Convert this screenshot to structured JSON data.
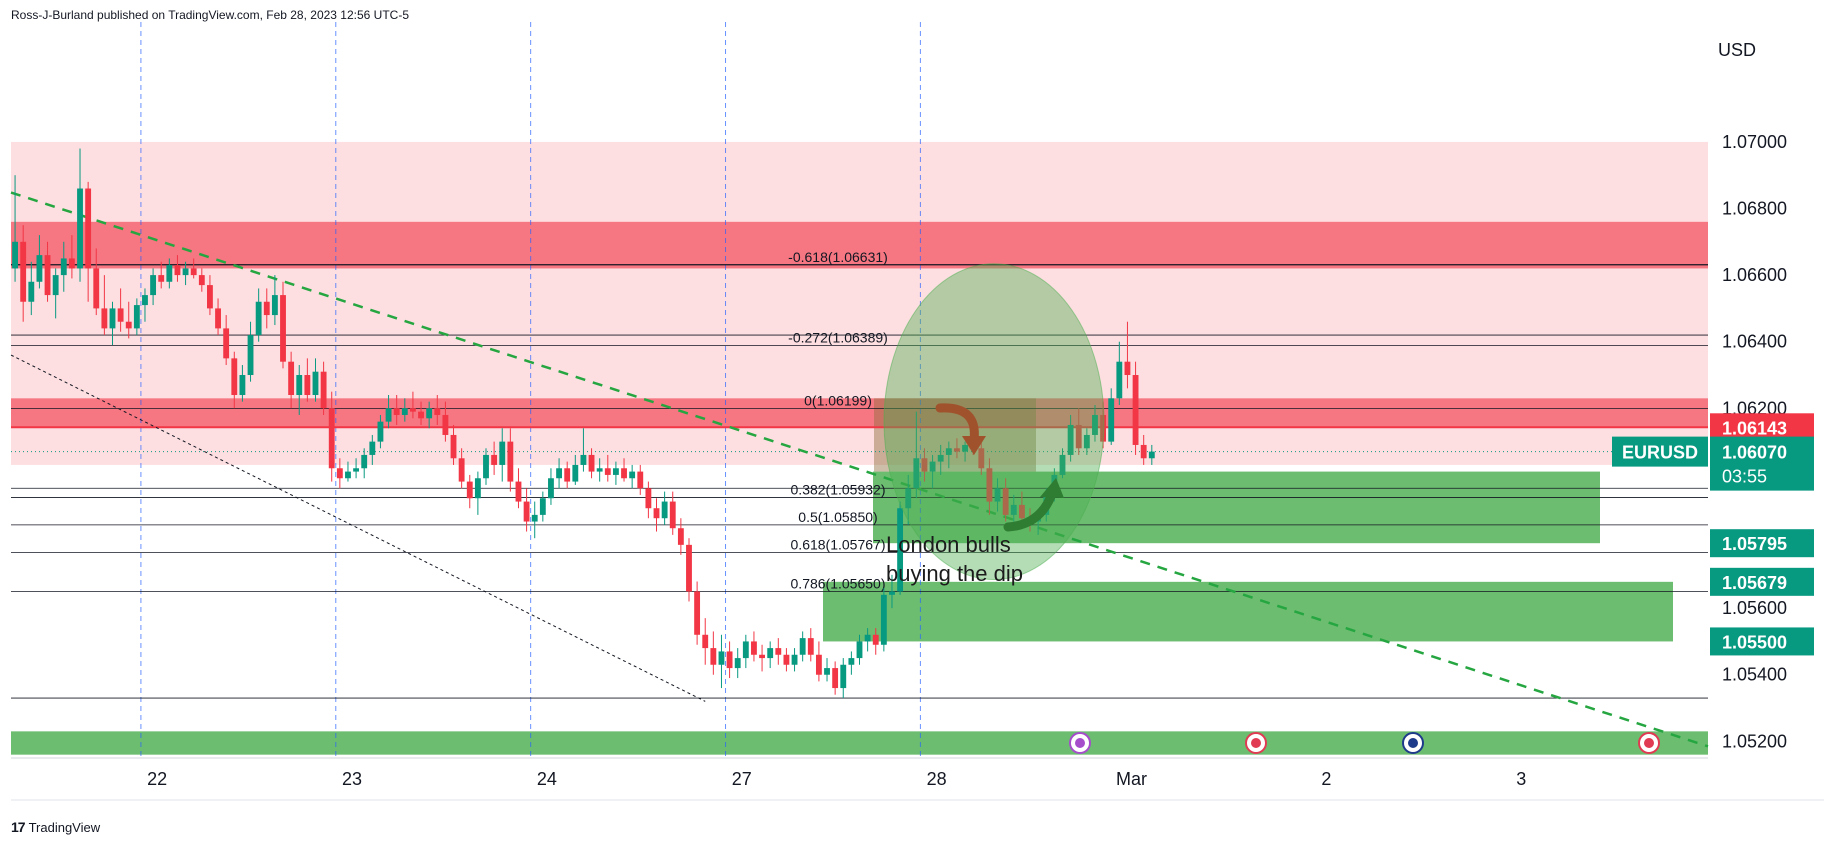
{
  "header": {
    "published": "Ross-J-Burland published on TradingView.com, Feb 28, 2023 12:56 UTC-5"
  },
  "footer": {
    "brand": "TradingView",
    "logo": "17"
  },
  "chart_data": {
    "type": "candlestick",
    "symbol": "EURUSD",
    "currency": "USD",
    "ylim": [
      1.0515,
      1.0736
    ],
    "y_ticks": [
      "1.07000",
      "1.06800",
      "1.06600",
      "1.06400",
      "1.06200",
      "1.05600",
      "1.05400",
      "1.05200"
    ],
    "x_ticks": [
      "22",
      "23",
      "24",
      "27",
      "28",
      "Mar",
      "2",
      "3"
    ],
    "x_tick_slots": [
      17.5,
      41.5,
      65.5,
      89.5,
      113.5,
      137.5,
      161.5,
      185.5
    ],
    "day_separators": [
      16,
      40,
      64,
      88,
      112
    ],
    "total_slots": 209,
    "colors": {
      "up": "#089981",
      "down": "#f23645",
      "trend": "#26a641",
      "fill_green": "#4caf50",
      "fill_red": "#f23645"
    },
    "candles": [
      [
        1.0662,
        1.069,
        1.0658,
        1.067
      ],
      [
        1.067,
        1.0675,
        1.0646,
        1.0652
      ],
      [
        1.0652,
        1.0664,
        1.0648,
        1.0658
      ],
      [
        1.0658,
        1.0672,
        1.0656,
        1.0666
      ],
      [
        1.0666,
        1.067,
        1.0652,
        1.0654
      ],
      [
        1.0654,
        1.0662,
        1.0647,
        1.066
      ],
      [
        1.066,
        1.067,
        1.0655,
        1.0665
      ],
      [
        1.0665,
        1.0672,
        1.0659,
        1.0662
      ],
      [
        1.0662,
        1.0698,
        1.0658,
        1.0686
      ],
      [
        1.0686,
        1.0688,
        1.0652,
        1.0662
      ],
      [
        1.0662,
        1.0668,
        1.0648,
        1.065
      ],
      [
        1.065,
        1.066,
        1.0642,
        1.0644
      ],
      [
        1.0644,
        1.0652,
        1.0639,
        1.065
      ],
      [
        1.065,
        1.0656,
        1.0643,
        1.0646
      ],
      [
        1.0646,
        1.0652,
        1.0641,
        1.0644
      ],
      [
        1.0644,
        1.0653,
        1.0642,
        1.0651
      ],
      [
        1.0651,
        1.0656,
        1.0646,
        1.0654
      ],
      [
        1.0654,
        1.0662,
        1.0651,
        1.066
      ],
      [
        1.066,
        1.0664,
        1.0656,
        1.0658
      ],
      [
        1.0658,
        1.0665,
        1.0656,
        1.0663
      ],
      [
        1.0663,
        1.0666,
        1.0658,
        1.066
      ],
      [
        1.066,
        1.0664,
        1.0657,
        1.0662
      ],
      [
        1.0662,
        1.0665,
        1.0659,
        1.066
      ],
      [
        1.066,
        1.0662,
        1.0655,
        1.0657
      ],
      [
        1.0657,
        1.066,
        1.0648,
        1.065
      ],
      [
        1.065,
        1.0653,
        1.0642,
        1.0644
      ],
      [
        1.0644,
        1.0648,
        1.0633,
        1.0635
      ],
      [
        1.0635,
        1.0637,
        1.062,
        1.0624
      ],
      [
        1.0624,
        1.0633,
        1.0622,
        1.063
      ],
      [
        1.063,
        1.0646,
        1.0628,
        1.0642
      ],
      [
        1.0642,
        1.0656,
        1.064,
        1.0652
      ],
      [
        1.0652,
        1.0656,
        1.0644,
        1.0648
      ],
      [
        1.0648,
        1.066,
        1.0645,
        1.0654
      ],
      [
        1.0654,
        1.0658,
        1.0632,
        1.0634
      ],
      [
        1.0634,
        1.0637,
        1.062,
        1.0624
      ],
      [
        1.0624,
        1.0633,
        1.0618,
        1.063
      ],
      [
        1.063,
        1.0635,
        1.0622,
        1.0624
      ],
      [
        1.0624,
        1.0635,
        1.0622,
        1.0631
      ],
      [
        1.0631,
        1.0634,
        1.0618,
        1.062
      ],
      [
        1.062,
        1.0625,
        1.0598,
        1.0602
      ],
      [
        1.0602,
        1.0605,
        1.0596,
        1.0599
      ],
      [
        1.0599,
        1.0604,
        1.0598,
        1.0601
      ],
      [
        1.0601,
        1.0605,
        1.0599,
        1.0602
      ],
      [
        1.0602,
        1.0608,
        1.0599,
        1.0606
      ],
      [
        1.0606,
        1.0612,
        1.0603,
        1.061
      ],
      [
        1.061,
        1.0618,
        1.0608,
        1.0616
      ],
      [
        1.0616,
        1.0624,
        1.0614,
        1.062
      ],
      [
        1.062,
        1.0624,
        1.0615,
        1.0618
      ],
      [
        1.0618,
        1.0623,
        1.0616,
        1.062
      ],
      [
        1.062,
        1.0625,
        1.0617,
        1.0619
      ],
      [
        1.0619,
        1.0622,
        1.0615,
        1.0617
      ],
      [
        1.0617,
        1.0622,
        1.0614,
        1.062
      ],
      [
        1.062,
        1.0624,
        1.0615,
        1.0618
      ],
      [
        1.0618,
        1.0622,
        1.061,
        1.0612
      ],
      [
        1.0612,
        1.0615,
        1.0603,
        1.0605
      ],
      [
        1.0605,
        1.0608,
        1.0596,
        1.0598
      ],
      [
        1.0598,
        1.06,
        1.059,
        1.0593
      ],
      [
        1.0593,
        1.0601,
        1.0588,
        1.0599
      ],
      [
        1.0599,
        1.0608,
        1.0597,
        1.0606
      ],
      [
        1.0606,
        1.061,
        1.06,
        1.0603
      ],
      [
        1.0603,
        1.0614,
        1.0598,
        1.061
      ],
      [
        1.061,
        1.0614,
        1.0595,
        1.0598
      ],
      [
        1.0598,
        1.0602,
        1.059,
        1.0592
      ],
      [
        1.0592,
        1.0596,
        1.0583,
        1.0586
      ],
      [
        1.0586,
        1.0592,
        1.0581,
        1.0588
      ],
      [
        1.0588,
        1.0595,
        1.0586,
        1.0593
      ],
      [
        1.0593,
        1.0602,
        1.0591,
        1.0599
      ],
      [
        1.0599,
        1.0605,
        1.0596,
        1.0602
      ],
      [
        1.0602,
        1.0604,
        1.0596,
        1.0598
      ],
      [
        1.0598,
        1.0606,
        1.0597,
        1.0603
      ],
      [
        1.0603,
        1.0614,
        1.0601,
        1.0606
      ],
      [
        1.0606,
        1.0608,
        1.0599,
        1.0601
      ],
      [
        1.0601,
        1.0605,
        1.0598,
        1.0602
      ],
      [
        1.0602,
        1.0606,
        1.0598,
        1.06
      ],
      [
        1.06,
        1.0604,
        1.0597,
        1.0602
      ],
      [
        1.0602,
        1.0605,
        1.0598,
        1.0599
      ],
      [
        1.0599,
        1.0603,
        1.0596,
        1.0601
      ],
      [
        1.0601,
        1.0603,
        1.0594,
        1.0596
      ],
      [
        1.0596,
        1.0598,
        1.0587,
        1.059
      ],
      [
        1.059,
        1.0593,
        1.0583,
        1.0587
      ],
      [
        1.0587,
        1.0595,
        1.0585,
        1.0592
      ],
      [
        1.0592,
        1.0595,
        1.0582,
        1.0584
      ],
      [
        1.0584,
        1.0587,
        1.0576,
        1.0579
      ],
      [
        1.0579,
        1.0581,
        1.0562,
        1.0565
      ],
      [
        1.0565,
        1.0568,
        1.0549,
        1.0552
      ],
      [
        1.0552,
        1.0557,
        1.0543,
        1.0548
      ],
      [
        1.0548,
        1.0553,
        1.054,
        1.0543
      ],
      [
        1.0543,
        1.0552,
        1.0536,
        1.0547
      ],
      [
        1.0547,
        1.055,
        1.0539,
        1.0542
      ],
      [
        1.0542,
        1.0548,
        1.0539,
        1.0545
      ],
      [
        1.0545,
        1.0552,
        1.0542,
        1.055
      ],
      [
        1.055,
        1.0553,
        1.0544,
        1.0546
      ],
      [
        1.0546,
        1.0549,
        1.0541,
        1.0545
      ],
      [
        1.0545,
        1.055,
        1.0542,
        1.0548
      ],
      [
        1.0548,
        1.0551,
        1.0543,
        1.0546
      ],
      [
        1.0546,
        1.0548,
        1.0541,
        1.0543
      ],
      [
        1.0543,
        1.0548,
        1.0541,
        1.0546
      ],
      [
        1.0546,
        1.0553,
        1.0544,
        1.0551
      ],
      [
        1.0551,
        1.0554,
        1.0544,
        1.0546
      ],
      [
        1.0546,
        1.055,
        1.0538,
        1.054
      ],
      [
        1.054,
        1.0545,
        1.0538,
        1.0542
      ],
      [
        1.0542,
        1.0544,
        1.0534,
        1.0536
      ],
      [
        1.0536,
        1.0545,
        1.0533,
        1.0543
      ],
      [
        1.0543,
        1.0547,
        1.054,
        1.0545
      ],
      [
        1.0545,
        1.0552,
        1.0543,
        1.055
      ],
      [
        1.055,
        1.0554,
        1.0547,
        1.0552
      ],
      [
        1.0552,
        1.0554,
        1.0546,
        1.0549
      ],
      [
        1.0549,
        1.0566,
        1.0547,
        1.0564
      ],
      [
        1.0564,
        1.057,
        1.056,
        1.0565
      ],
      [
        1.0565,
        1.0592,
        1.0564,
        1.059
      ],
      [
        1.059,
        1.06,
        1.0585,
        1.0596
      ],
      [
        1.0596,
        1.0619,
        1.0593,
        1.0605
      ],
      [
        1.0605,
        1.0608,
        1.0598,
        1.0601
      ],
      [
        1.0601,
        1.0606,
        1.0596,
        1.0604
      ],
      [
        1.0604,
        1.0609,
        1.06,
        1.0606
      ],
      [
        1.0606,
        1.061,
        1.0602,
        1.0608
      ],
      [
        1.0608,
        1.0611,
        1.0605,
        1.0607
      ],
      [
        1.0607,
        1.061,
        1.0604,
        1.0609
      ],
      [
        1.0609,
        1.0612,
        1.0606,
        1.0608
      ],
      [
        1.0608,
        1.0611,
        1.06,
        1.0602
      ],
      [
        1.0602,
        1.0605,
        1.0588,
        1.0592
      ],
      [
        1.0592,
        1.0599,
        1.0589,
        1.0596
      ],
      [
        1.0596,
        1.0599,
        1.0586,
        1.0588
      ],
      [
        1.0588,
        1.0594,
        1.0586,
        1.0591
      ],
      [
        1.0591,
        1.0595,
        1.0585,
        1.0587
      ],
      [
        1.0587,
        1.059,
        1.0583,
        1.0586
      ],
      [
        1.0586,
        1.0589,
        1.0582,
        1.0588
      ],
      [
        1.0588,
        1.0596,
        1.0586,
        1.0594
      ],
      [
        1.0594,
        1.0602,
        1.0592,
        1.06
      ],
      [
        1.06,
        1.0608,
        1.0599,
        1.0606
      ],
      [
        1.0606,
        1.0618,
        1.0604,
        1.0615
      ],
      [
        1.0615,
        1.062,
        1.0606,
        1.0608
      ],
      [
        1.0608,
        1.0614,
        1.0606,
        1.0612
      ],
      [
        1.0612,
        1.0621,
        1.061,
        1.0618
      ],
      [
        1.0618,
        1.0622,
        1.0608,
        1.061
      ],
      [
        1.061,
        1.0626,
        1.0609,
        1.0623
      ],
      [
        1.0623,
        1.064,
        1.0621,
        1.0634
      ],
      [
        1.0634,
        1.0646,
        1.0626,
        1.063
      ],
      [
        1.063,
        1.0634,
        1.0606,
        1.0609
      ],
      [
        1.0609,
        1.0612,
        1.0603,
        1.0605
      ],
      [
        1.0605,
        1.0609,
        1.0603,
        1.0607
      ]
    ],
    "price_lines": [
      {
        "price": 1.06631,
        "color": "#131722",
        "width": 1.2,
        "label": "-0.618(1.06631)",
        "label_x": 900
      },
      {
        "price": 1.0642,
        "color": "#131722",
        "width": 0.8,
        "label": "",
        "label_x": 0
      },
      {
        "price": 1.06389,
        "color": "#131722",
        "width": 0.8,
        "label": "-0.272(1.06389)",
        "label_x": 900
      },
      {
        "price": 1.06199,
        "color": "#131722",
        "width": 0.8,
        "label": "0(1.06199)",
        "label_x": 900
      },
      {
        "price": 1.05932,
        "color": "#131722",
        "width": 0.8,
        "label": "0.382(1.05932)",
        "label_x": 900
      },
      {
        "price": 1.0585,
        "color": "#131722",
        "width": 0.8,
        "label": "0.5(1.05850)",
        "label_x": 900
      },
      {
        "price": 1.05767,
        "color": "#131722",
        "width": 0.8,
        "label": "0.618(1.05767)",
        "label_x": 900
      },
      {
        "price": 1.0565,
        "color": "#131722",
        "width": 0.8,
        "label": "0.786(1.05650)",
        "label_x": 900
      },
      {
        "price": 1.0596,
        "color": "#131722",
        "width": 0.8,
        "label": "",
        "label_x": 0
      },
      {
        "price": 1.0533,
        "color": "#131722",
        "width": 0.8,
        "label": "",
        "label_x": 0
      }
    ],
    "zones": [
      {
        "kind": "red-light",
        "top": 1.07,
        "bottom": 1.0603
      },
      {
        "kind": "red-strong",
        "top": 1.0676,
        "bottom": 1.0662
      },
      {
        "kind": "red-strong",
        "top": 1.0623,
        "bottom": 1.06143
      },
      {
        "kind": "green",
        "top": 1.0601,
        "bottom": 1.05795,
        "x_start": 873,
        "x_end": 1600
      },
      {
        "kind": "green",
        "top": 1.05679,
        "bottom": 1.055,
        "x_start": 823,
        "x_end": 1673
      },
      {
        "kind": "green",
        "top": 1.0523,
        "bottom": 1.0516,
        "x_start": 11,
        "x_end": 1708
      }
    ],
    "axis_labels": [
      {
        "text": "1.06143",
        "price": 1.06143,
        "bg": "#f23645",
        "fg": "#ffffff"
      },
      {
        "text": "1.05795",
        "price": 1.05795,
        "bg": "#089981",
        "fg": "#ffffff"
      },
      {
        "text": "1.05679",
        "price": 1.05679,
        "bg": "#089981",
        "fg": "#ffffff"
      },
      {
        "text": "1.05500",
        "price": 1.055,
        "bg": "#089981",
        "fg": "#ffffff"
      }
    ],
    "last_price": {
      "symbol": "EURUSD",
      "price": "1.06070",
      "countdown": "03:55",
      "value": 1.0607
    },
    "annotation": {
      "text_line1": "London bulls",
      "text_line2": "buying the dip"
    }
  }
}
